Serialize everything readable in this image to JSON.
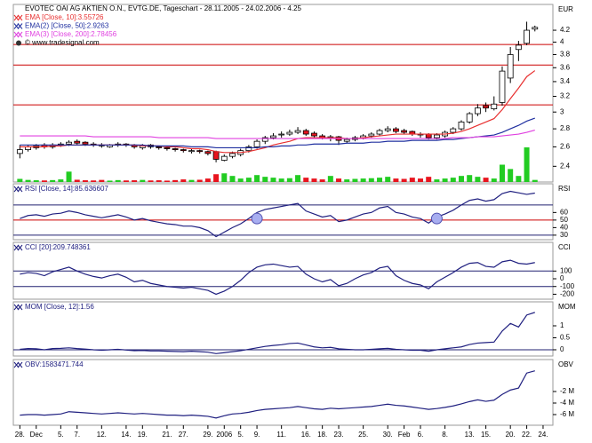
{
  "chart_data": [
    {
      "type": "candlestick",
      "title": "EVOTEC OAI AG AKTIEN O.N., EVTG.DE, Tageschart - 28.11.2005 - 24.02.2006 - 4.25",
      "source": "© www.tradesignal.com",
      "y_axis_label": "EUR",
      "log_scale": true,
      "xlim": [
        -0.8,
        65.2
      ],
      "ylim": [
        2.25,
        4.67
      ],
      "yticks": [
        2.4,
        2.6,
        2.8,
        3,
        3.2,
        3.4,
        3.6,
        3.8,
        4,
        4.2
      ],
      "open": [
        2.53,
        2.57,
        2.59,
        2.62,
        2.6,
        2.62,
        2.63,
        2.66,
        2.65,
        2.63,
        2.62,
        2.6,
        2.62,
        2.63,
        2.62,
        2.59,
        2.62,
        2.6,
        2.59,
        2.58,
        2.57,
        2.55,
        2.56,
        2.55,
        2.55,
        2.46,
        2.5,
        2.52,
        2.56,
        2.6,
        2.66,
        2.7,
        2.73,
        2.74,
        2.76,
        2.78,
        2.75,
        2.72,
        2.69,
        2.71,
        2.66,
        2.68,
        2.7,
        2.72,
        2.74,
        2.78,
        2.8,
        2.78,
        2.77,
        2.74,
        2.74,
        2.7,
        2.72,
        2.76,
        2.8,
        2.88,
        2.98,
        3.08,
        3.04,
        3.12,
        3.45,
        3.88,
        3.98,
        4.22
      ],
      "high": [
        2.62,
        2.62,
        2.63,
        2.64,
        2.64,
        2.65,
        2.67,
        2.68,
        2.66,
        2.65,
        2.64,
        2.63,
        2.65,
        2.64,
        2.63,
        2.63,
        2.63,
        2.61,
        2.6,
        2.59,
        2.58,
        2.58,
        2.57,
        2.56,
        2.56,
        2.52,
        2.55,
        2.58,
        2.62,
        2.68,
        2.72,
        2.75,
        2.77,
        2.79,
        2.82,
        2.8,
        2.77,
        2.74,
        2.73,
        2.72,
        2.7,
        2.72,
        2.74,
        2.76,
        2.8,
        2.83,
        2.82,
        2.8,
        2.78,
        2.76,
        2.75,
        2.75,
        2.78,
        2.82,
        2.9,
        3.0,
        3.1,
        3.12,
        3.2,
        3.62,
        3.92,
        4.02,
        4.35,
        4.28
      ],
      "low": [
        2.48,
        2.55,
        2.57,
        2.58,
        2.58,
        2.6,
        2.61,
        2.62,
        2.61,
        2.6,
        2.59,
        2.59,
        2.6,
        2.6,
        2.58,
        2.57,
        2.58,
        2.57,
        2.56,
        2.55,
        2.54,
        2.53,
        2.53,
        2.51,
        2.44,
        2.45,
        2.48,
        2.5,
        2.54,
        2.58,
        2.63,
        2.68,
        2.7,
        2.72,
        2.74,
        2.72,
        2.7,
        2.68,
        2.66,
        2.62,
        2.64,
        2.66,
        2.68,
        2.7,
        2.72,
        2.76,
        2.75,
        2.74,
        2.72,
        2.7,
        2.68,
        2.68,
        2.7,
        2.74,
        2.78,
        2.86,
        2.95,
        3.0,
        3.02,
        3.08,
        3.38,
        3.7,
        3.95,
        4.18
      ],
      "close": [
        2.57,
        2.6,
        2.61,
        2.6,
        2.62,
        2.63,
        2.65,
        2.64,
        2.63,
        2.62,
        2.61,
        2.62,
        2.63,
        2.62,
        2.6,
        2.61,
        2.6,
        2.59,
        2.58,
        2.57,
        2.56,
        2.56,
        2.55,
        2.53,
        2.47,
        2.5,
        2.53,
        2.56,
        2.6,
        2.66,
        2.7,
        2.72,
        2.74,
        2.76,
        2.78,
        2.74,
        2.72,
        2.7,
        2.71,
        2.67,
        2.68,
        2.7,
        2.72,
        2.74,
        2.78,
        2.8,
        2.77,
        2.76,
        2.74,
        2.73,
        2.7,
        2.73,
        2.76,
        2.8,
        2.88,
        2.98,
        3.05,
        3.05,
        3.1,
        3.55,
        3.8,
        3.95,
        4.2,
        4.25
      ],
      "up_color": "#ffffff",
      "down_color": "#e8141e",
      "volume": [
        180000,
        120000,
        100000,
        90000,
        110000,
        150000,
        600000,
        130000,
        100000,
        90000,
        120000,
        80000,
        110000,
        90000,
        100000,
        120000,
        90000,
        100000,
        80000,
        110000,
        150000,
        120000,
        130000,
        200000,
        450000,
        500000,
        350000,
        200000,
        250000,
        400000,
        300000,
        250000,
        200000,
        220000,
        400000,
        250000,
        200000,
        150000,
        350000,
        200000,
        150000,
        180000,
        200000,
        220000,
        250000,
        300000,
        200000,
        180000,
        250000,
        200000,
        300000,
        150000,
        200000,
        250000,
        350000,
        400000,
        300000,
        250000,
        200000,
        1000000,
        750000,
        350000,
        2000000,
        120000
      ],
      "volume_up_color": "#22cc22",
      "volume_down_color": "#e8141e",
      "level_lines": [
        3.96,
        3.64,
        3.09
      ],
      "level_colors": [
        "#cc0000",
        "#cc0000",
        "#cc0000"
      ],
      "series": [
        {
          "name": "EMA [Close, 10]:3.55726",
          "color": "#e83030",
          "values": [
            2.6,
            2.6,
            2.6,
            2.6,
            2.61,
            2.61,
            2.62,
            2.62,
            2.62,
            2.62,
            2.62,
            2.62,
            2.62,
            2.62,
            2.62,
            2.61,
            2.61,
            2.61,
            2.6,
            2.6,
            2.59,
            2.58,
            2.58,
            2.57,
            2.55,
            2.54,
            2.54,
            2.54,
            2.55,
            2.57,
            2.59,
            2.62,
            2.64,
            2.66,
            2.69,
            2.7,
            2.7,
            2.7,
            2.7,
            2.7,
            2.69,
            2.69,
            2.7,
            2.71,
            2.72,
            2.73,
            2.74,
            2.74,
            2.74,
            2.74,
            2.74,
            2.74,
            2.74,
            2.75,
            2.77,
            2.8,
            2.84,
            2.88,
            2.92,
            3.03,
            3.17,
            3.31,
            3.47,
            3.557
          ]
        },
        {
          "name": "EMA(2) [Close, 50]:2.9263",
          "color": "#2030a0",
          "values": [
            2.62,
            2.62,
            2.62,
            2.62,
            2.62,
            2.62,
            2.62,
            2.62,
            2.62,
            2.62,
            2.62,
            2.62,
            2.62,
            2.62,
            2.62,
            2.62,
            2.61,
            2.61,
            2.61,
            2.61,
            2.61,
            2.6,
            2.6,
            2.6,
            2.59,
            2.59,
            2.59,
            2.59,
            2.59,
            2.59,
            2.6,
            2.6,
            2.61,
            2.61,
            2.62,
            2.62,
            2.63,
            2.63,
            2.63,
            2.63,
            2.64,
            2.64,
            2.64,
            2.65,
            2.65,
            2.66,
            2.66,
            2.66,
            2.67,
            2.67,
            2.67,
            2.67,
            2.68,
            2.68,
            2.69,
            2.7,
            2.71,
            2.72,
            2.73,
            2.76,
            2.8,
            2.84,
            2.89,
            2.926
          ]
        },
        {
          "name": "EMA(3) [Close, 200]:2.78456",
          "color": "#e040e0",
          "values": [
            2.72,
            2.72,
            2.72,
            2.72,
            2.72,
            2.72,
            2.72,
            2.72,
            2.72,
            2.71,
            2.71,
            2.71,
            2.71,
            2.71,
            2.71,
            2.71,
            2.71,
            2.7,
            2.7,
            2.7,
            2.7,
            2.7,
            2.7,
            2.7,
            2.69,
            2.69,
            2.69,
            2.69,
            2.69,
            2.69,
            2.69,
            2.69,
            2.69,
            2.69,
            2.69,
            2.69,
            2.69,
            2.69,
            2.69,
            2.69,
            2.69,
            2.69,
            2.69,
            2.69,
            2.69,
            2.69,
            2.69,
            2.69,
            2.69,
            2.69,
            2.69,
            2.69,
            2.69,
            2.7,
            2.7,
            2.7,
            2.71,
            2.71,
            2.71,
            2.72,
            2.73,
            2.74,
            2.76,
            2.785
          ]
        }
      ]
    },
    {
      "type": "line",
      "y_axis_label": "RSI",
      "xlim": [
        -0.8,
        65.2
      ],
      "ylim": [
        24,
        98
      ],
      "yticks": [
        60,
        50,
        40,
        30
      ],
      "level_lines": [
        70,
        50,
        30
      ],
      "level_colors": [
        "#202070",
        "#cc0000",
        "#202070"
      ],
      "signals": [
        {
          "x": 29,
          "y": 52
        },
        {
          "x": 51,
          "y": 52
        }
      ],
      "signal_color": "#a8aef0",
      "series": [
        {
          "name": "RSI [Close, 14]:85.636607",
          "color": "#202080",
          "values": [
            52,
            56,
            57,
            55,
            58,
            59,
            62,
            60,
            57,
            55,
            53,
            55,
            57,
            54,
            50,
            52,
            49,
            47,
            45,
            44,
            42,
            42,
            40,
            36,
            28,
            34,
            40,
            45,
            52,
            60,
            64,
            66,
            68,
            70,
            72,
            62,
            58,
            54,
            56,
            48,
            50,
            54,
            58,
            60,
            66,
            68,
            60,
            58,
            54,
            52,
            46,
            54,
            58,
            63,
            70,
            76,
            78,
            75,
            77,
            85,
            88,
            86,
            84,
            85.64
          ]
        }
      ]
    },
    {
      "type": "line",
      "y_axis_label": "CCI",
      "xlim": [
        -0.8,
        65.2
      ],
      "ylim": [
        -264,
        471
      ],
      "yticks": [
        100,
        0,
        -100,
        -200
      ],
      "level_lines": [
        100,
        -100
      ],
      "level_colors": [
        "#202070",
        "#202070"
      ],
      "series": [
        {
          "name": "CCI [20]:209.748361",
          "color": "#202080",
          "values": [
            60,
            80,
            70,
            40,
            90,
            120,
            150,
            100,
            60,
            30,
            10,
            40,
            60,
            20,
            -40,
            -20,
            -60,
            -80,
            -100,
            -110,
            -120,
            -110,
            -130,
            -150,
            -200,
            -160,
            -100,
            -20,
            80,
            150,
            180,
            190,
            170,
            150,
            160,
            60,
            0,
            -40,
            -10,
            -90,
            -60,
            0,
            50,
            80,
            140,
            160,
            40,
            -20,
            -60,
            -80,
            -130,
            -40,
            20,
            80,
            150,
            200,
            210,
            160,
            150,
            220,
            240,
            200,
            190,
            209.75
          ]
        }
      ]
    },
    {
      "type": "line",
      "y_axis_label": "MOM",
      "xlim": [
        -0.8,
        65.2
      ],
      "ylim": [
        -0.26,
        2.0
      ],
      "yticks": [
        1,
        0.5,
        0
      ],
      "level_lines": [
        0
      ],
      "level_colors": [
        "#202070"
      ],
      "series": [
        {
          "name": "MOM [Close, 12]:1.56",
          "color": "#202080",
          "values": [
            0.02,
            0.05,
            0.04,
            0.0,
            0.05,
            0.06,
            0.08,
            0.05,
            0.03,
            0.0,
            -0.02,
            0.0,
            0.02,
            -0.01,
            -0.04,
            -0.03,
            -0.05,
            -0.05,
            -0.06,
            -0.07,
            -0.08,
            -0.06,
            -0.08,
            -0.1,
            -0.16,
            -0.12,
            -0.08,
            -0.04,
            0.02,
            0.08,
            0.14,
            0.18,
            0.21,
            0.26,
            0.28,
            0.2,
            0.12,
            0.08,
            0.1,
            0.04,
            0.02,
            0.0,
            0.0,
            0.02,
            0.04,
            0.06,
            0.02,
            0.0,
            -0.02,
            -0.02,
            -0.06,
            0.0,
            0.04,
            0.08,
            0.12,
            0.22,
            0.28,
            0.3,
            0.32,
            0.78,
            1.1,
            0.95,
            1.45,
            1.56
          ]
        }
      ]
    },
    {
      "type": "line",
      "y_axis_label": "OBV",
      "xlim": [
        -0.8,
        65.2
      ],
      "ylim": [
        -7850000,
        3540000
      ],
      "yticks": [
        {
          "value": -2000000,
          "label": "-2 M"
        },
        {
          "value": -4000000,
          "label": "-4 M"
        },
        {
          "value": -6000000,
          "label": "-6 M"
        }
      ],
      "xticks": [
        {
          "value": 0,
          "label": "28."
        },
        {
          "value": 2,
          "label": "Dec"
        },
        {
          "value": 5,
          "label": "5."
        },
        {
          "value": 7,
          "label": "7."
        },
        {
          "value": 10,
          "label": "12."
        },
        {
          "value": 13,
          "label": "14."
        },
        {
          "value": 15,
          "label": "19."
        },
        {
          "value": 18,
          "label": "21."
        },
        {
          "value": 20,
          "label": "27."
        },
        {
          "value": 23,
          "label": "29."
        },
        {
          "value": 25,
          "label": "2006"
        },
        {
          "value": 27,
          "label": "5."
        },
        {
          "value": 29,
          "label": "9."
        },
        {
          "value": 32,
          "label": "11."
        },
        {
          "value": 35,
          "label": "16."
        },
        {
          "value": 37,
          "label": "18."
        },
        {
          "value": 39,
          "label": "23."
        },
        {
          "value": 42,
          "label": "25."
        },
        {
          "value": 45,
          "label": "30."
        },
        {
          "value": 47,
          "label": "Feb"
        },
        {
          "value": 49,
          "label": "6."
        },
        {
          "value": 52,
          "label": "8."
        },
        {
          "value": 55,
          "label": "13."
        },
        {
          "value": 57,
          "label": "15."
        },
        {
          "value": 60,
          "label": "20."
        },
        {
          "value": 62,
          "label": "22."
        },
        {
          "value": 64,
          "label": "24."
        }
      ],
      "series": [
        {
          "name": "OBV:1583471.744",
          "color": "#202080",
          "values": [
            -6100000,
            -6000000,
            -6000000,
            -6100000,
            -6000000,
            -5900000,
            -5500000,
            -5600000,
            -5700000,
            -5800000,
            -5900000,
            -5800000,
            -5700000,
            -5800000,
            -5900000,
            -5800000,
            -5900000,
            -6000000,
            -6100000,
            -6100000,
            -6200000,
            -6100000,
            -6200000,
            -6300000,
            -6600000,
            -6200000,
            -5900000,
            -5800000,
            -5600000,
            -5300000,
            -5100000,
            -5000000,
            -4900000,
            -4800000,
            -4600000,
            -4800000,
            -5000000,
            -5100000,
            -4900000,
            -5000000,
            -4900000,
            -4800000,
            -4700000,
            -4600000,
            -4400000,
            -4200000,
            -4400000,
            -4500000,
            -4700000,
            -4900000,
            -5100000,
            -4950000,
            -4750000,
            -4500000,
            -4150000,
            -3750000,
            -3450000,
            -3700000,
            -3500000,
            -2500000,
            -1750000,
            -1400000,
            1200000,
            1583471.744
          ]
        }
      ]
    }
  ]
}
